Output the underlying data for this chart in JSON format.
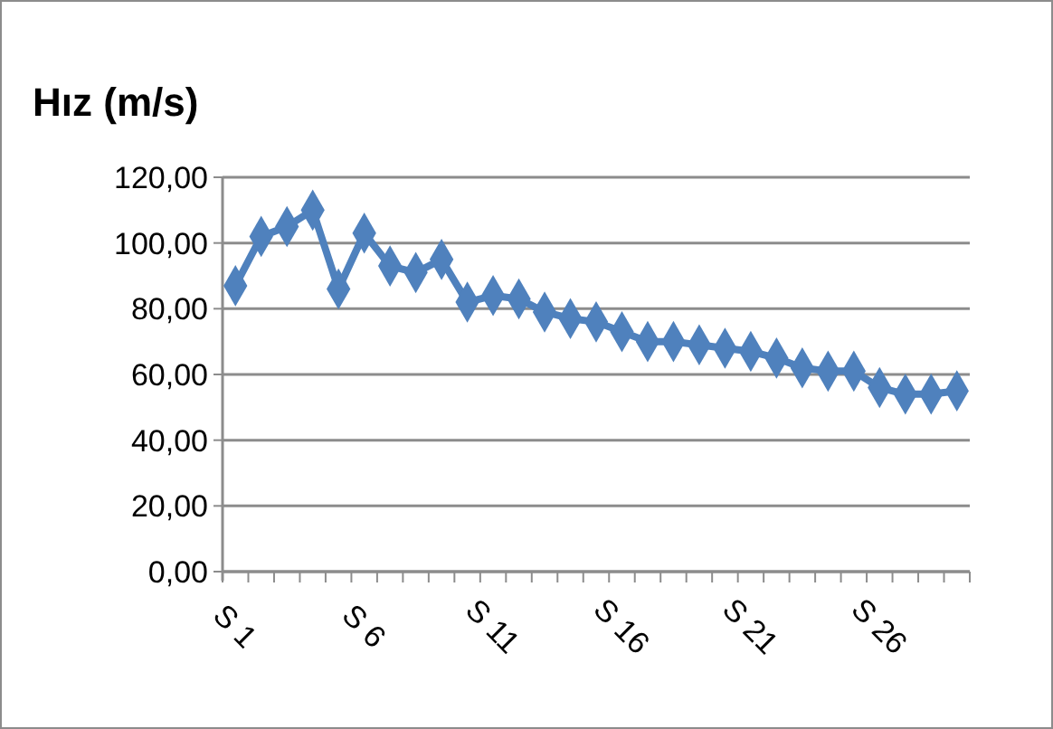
{
  "chart_data": {
    "type": "line",
    "title": "Hız (m/s)",
    "categories": [
      "S 1",
      null,
      null,
      null,
      null,
      "S 6",
      null,
      null,
      null,
      null,
      "S 11",
      null,
      null,
      null,
      null,
      "S 16",
      null,
      null,
      null,
      null,
      "S 21",
      null,
      null,
      null,
      null,
      "S 26",
      null,
      null,
      null
    ],
    "series": [
      {
        "color": "#4f81bd",
        "values": [
          87,
          102,
          105,
          110,
          86,
          103,
          93,
          91,
          95,
          82,
          84,
          83,
          79,
          77,
          76,
          73,
          70,
          70,
          69,
          68,
          67,
          65,
          62,
          61,
          61,
          56,
          54,
          54,
          55
        ]
      }
    ],
    "ylim": [
      0,
      120
    ],
    "yticks": [
      {
        "value": 0,
        "label": "0,00"
      },
      {
        "value": 20,
        "label": "20,00"
      },
      {
        "value": 40,
        "label": "40,00"
      },
      {
        "value": 60,
        "label": "60,00"
      },
      {
        "value": 80,
        "label": "80,00"
      },
      {
        "value": 100,
        "label": "100,00"
      },
      {
        "value": 120,
        "label": "120,00"
      }
    ],
    "grid": "y",
    "marker": "diamond",
    "line_style": "solid"
  }
}
